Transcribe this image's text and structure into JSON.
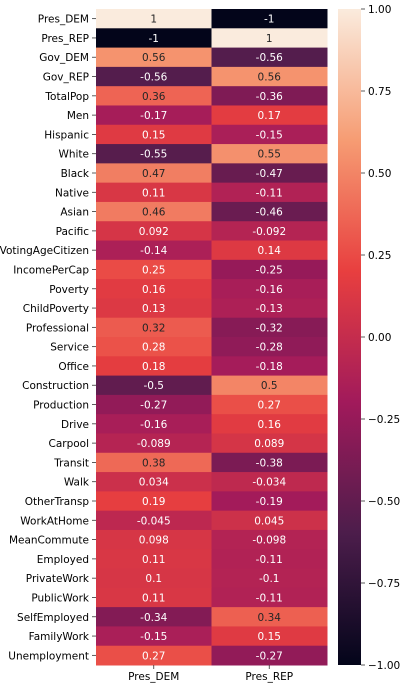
{
  "chart_data": {
    "type": "heatmap",
    "title": "",
    "xlabel": "",
    "ylabel": "",
    "columns": [
      "Pres_DEM",
      "Pres_REP"
    ],
    "rows": [
      "Pres_DEM",
      "Pres_REP",
      "Gov_DEM",
      "Gov_REP",
      "TotalPop",
      "Men",
      "Hispanic",
      "White",
      "Black",
      "Native",
      "Asian",
      "Pacific",
      "VotingAgeCitizen",
      "IncomePerCap",
      "Poverty",
      "ChildPoverty",
      "Professional",
      "Service",
      "Office",
      "Construction",
      "Production",
      "Drive",
      "Carpool",
      "Transit",
      "Walk",
      "OtherTransp",
      "WorkAtHome",
      "MeanCommute",
      "Employed",
      "PrivateWork",
      "PublicWork",
      "SelfEmployed",
      "FamilyWork",
      "Unemployment"
    ],
    "values": [
      [
        1,
        -1
      ],
      [
        -1,
        1
      ],
      [
        0.56,
        -0.56
      ],
      [
        -0.56,
        0.56
      ],
      [
        0.36,
        -0.36
      ],
      [
        -0.17,
        0.17
      ],
      [
        0.15,
        -0.15
      ],
      [
        -0.55,
        0.55
      ],
      [
        0.47,
        -0.47
      ],
      [
        0.11,
        -0.11
      ],
      [
        0.46,
        -0.46
      ],
      [
        0.092,
        -0.092
      ],
      [
        -0.14,
        0.14
      ],
      [
        0.25,
        -0.25
      ],
      [
        0.16,
        -0.16
      ],
      [
        0.13,
        -0.13
      ],
      [
        0.32,
        -0.32
      ],
      [
        0.28,
        -0.28
      ],
      [
        0.18,
        -0.18
      ],
      [
        -0.5,
        0.5
      ],
      [
        -0.27,
        0.27
      ],
      [
        -0.16,
        0.16
      ],
      [
        -0.089,
        0.089
      ],
      [
        0.38,
        -0.38
      ],
      [
        0.034,
        -0.034
      ],
      [
        0.19,
        -0.19
      ],
      [
        -0.045,
        0.045
      ],
      [
        0.098,
        -0.098
      ],
      [
        0.11,
        -0.11
      ],
      [
        0.1,
        -0.1
      ],
      [
        0.11,
        -0.11
      ],
      [
        -0.34,
        0.34
      ],
      [
        -0.15,
        0.15
      ],
      [
        0.27,
        -0.27
      ]
    ],
    "colorbar": {
      "range": [
        -1,
        1
      ],
      "ticks": [
        "1.00",
        "0.75",
        "0.50",
        "0.25",
        "0.00",
        "−0.25",
        "−0.50",
        "−0.75",
        "−1.00"
      ],
      "colormap": "rocket",
      "color_stops": [
        "#03051a",
        "#4c1d4b",
        "#a11a5b",
        "#e83f3f",
        "#f69c73",
        "#faebdd"
      ]
    },
    "annotate": true,
    "grid": false
  }
}
